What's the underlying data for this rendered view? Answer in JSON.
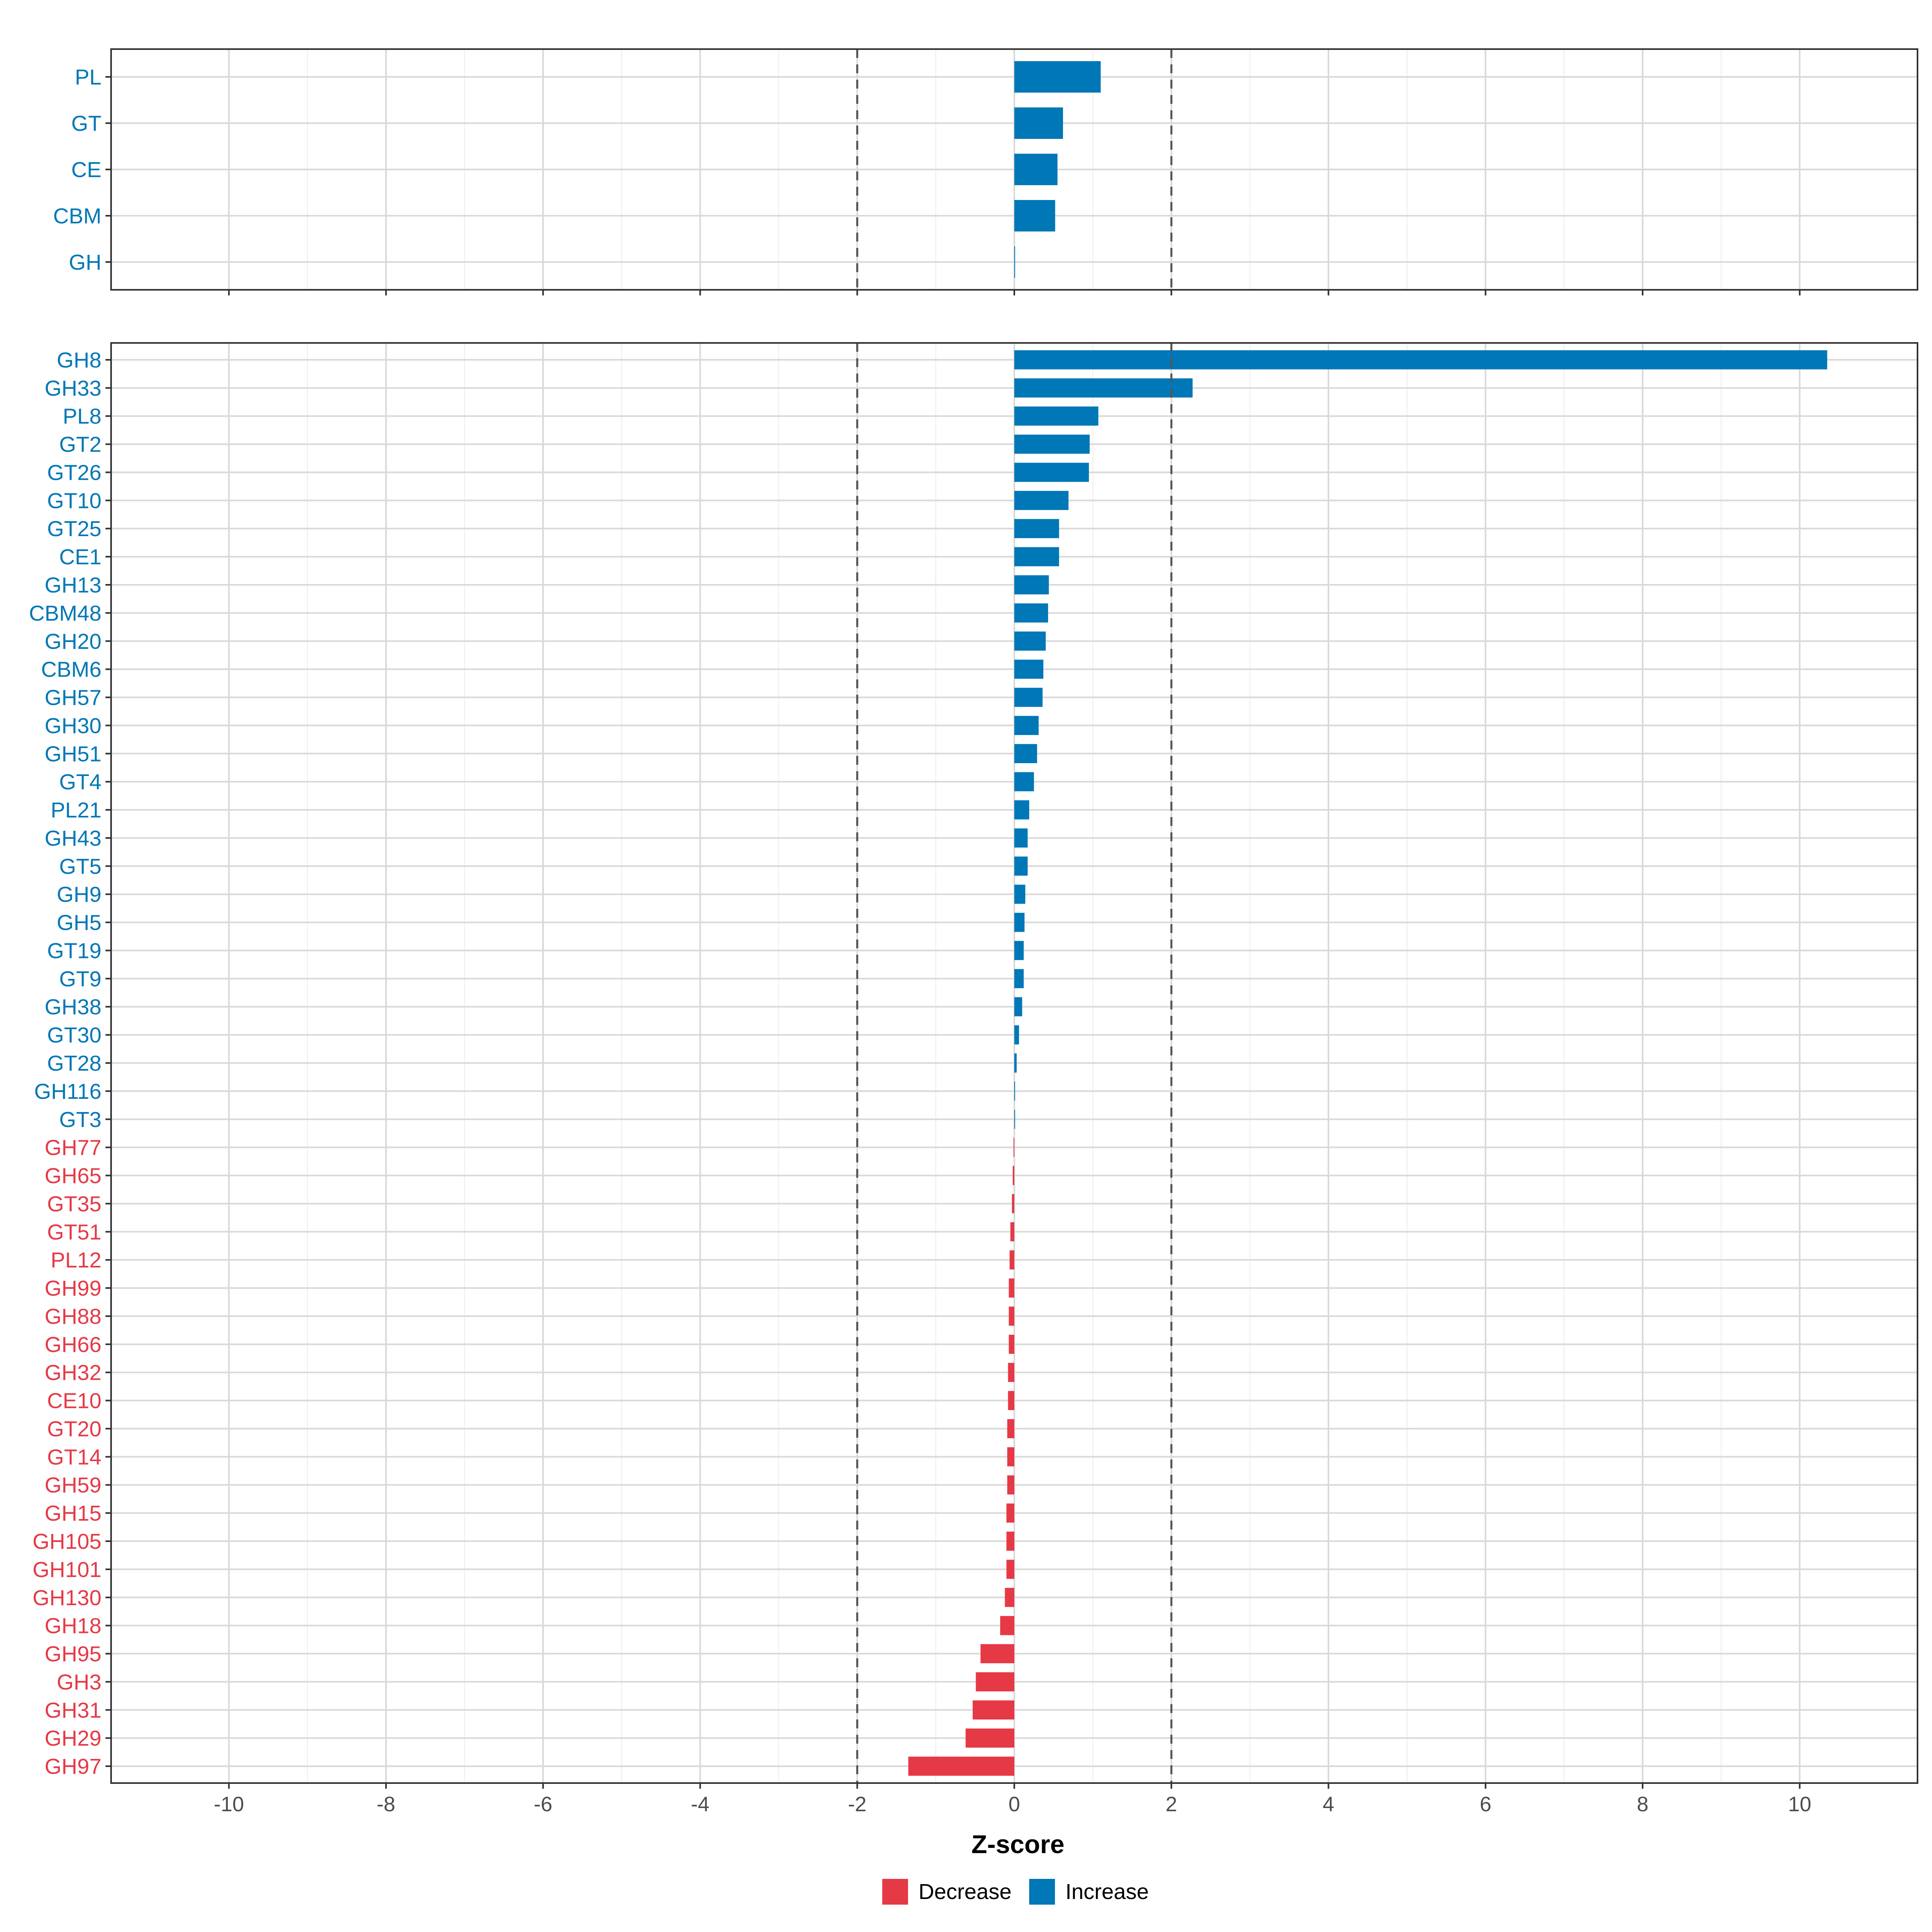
{
  "chart_data": [
    {
      "type": "bar",
      "orientation": "horizontal",
      "categories": [
        "PL",
        "GT",
        "CE",
        "CBM",
        "GH"
      ],
      "values": [
        1.1,
        0.62,
        0.55,
        0.52,
        0.01
      ],
      "direction": [
        "Increase",
        "Increase",
        "Increase",
        "Increase",
        "Increase"
      ],
      "xlim": [
        -11.5,
        11.5
      ],
      "reference_lines": [
        -2,
        2
      ],
      "grid": true
    },
    {
      "type": "bar",
      "orientation": "horizontal",
      "categories": [
        "GH8",
        "GH33",
        "PL8",
        "GT2",
        "GT26",
        "GT10",
        "GT25",
        "CE1",
        "GH13",
        "CBM48",
        "GH20",
        "CBM6",
        "GH57",
        "GH30",
        "GH51",
        "GT4",
        "PL21",
        "GH43",
        "GT5",
        "GH9",
        "GH5",
        "GT19",
        "GT9",
        "GH38",
        "GT30",
        "GT28",
        "GH116",
        "GT3",
        "GH77",
        "GH65",
        "GT35",
        "GT51",
        "PL12",
        "GH99",
        "GH88",
        "GH66",
        "GH32",
        "CE10",
        "GT20",
        "GT14",
        "GH59",
        "GH15",
        "GH105",
        "GH101",
        "GH130",
        "GH18",
        "GH95",
        "GH3",
        "GH31",
        "GH29",
        "GH97"
      ],
      "values": [
        10.35,
        2.27,
        1.07,
        0.96,
        0.95,
        0.69,
        0.57,
        0.57,
        0.44,
        0.43,
        0.4,
        0.37,
        0.36,
        0.31,
        0.29,
        0.25,
        0.19,
        0.17,
        0.17,
        0.14,
        0.13,
        0.12,
        0.12,
        0.1,
        0.06,
        0.03,
        0.01,
        0.01,
        -0.01,
        -0.02,
        -0.03,
        -0.05,
        -0.06,
        -0.07,
        -0.07,
        -0.07,
        -0.08,
        -0.08,
        -0.09,
        -0.09,
        -0.09,
        -0.1,
        -0.1,
        -0.1,
        -0.12,
        -0.18,
        -0.43,
        -0.49,
        -0.53,
        -0.62,
        -1.35
      ],
      "direction": [
        "Increase",
        "Increase",
        "Increase",
        "Increase",
        "Increase",
        "Increase",
        "Increase",
        "Increase",
        "Increase",
        "Increase",
        "Increase",
        "Increase",
        "Increase",
        "Increase",
        "Increase",
        "Increase",
        "Increase",
        "Increase",
        "Increase",
        "Increase",
        "Increase",
        "Increase",
        "Increase",
        "Increase",
        "Increase",
        "Increase",
        "Increase",
        "Increase",
        "Decrease",
        "Decrease",
        "Decrease",
        "Decrease",
        "Decrease",
        "Decrease",
        "Decrease",
        "Decrease",
        "Decrease",
        "Decrease",
        "Decrease",
        "Decrease",
        "Decrease",
        "Decrease",
        "Decrease",
        "Decrease",
        "Decrease",
        "Decrease",
        "Decrease",
        "Decrease",
        "Decrease",
        "Decrease",
        "Decrease"
      ],
      "xlim": [
        -11.5,
        11.5
      ],
      "xticks": [
        -10,
        -8,
        -6,
        -4,
        -2,
        0,
        2,
        4,
        6,
        8,
        10
      ],
      "xtick_labels": [
        "-10",
        "-8",
        "-6",
        "-4",
        "-2",
        "0",
        "2",
        "4",
        "6",
        "8",
        "10"
      ],
      "xlabel": "Z-score",
      "reference_lines": [
        -2,
        2
      ],
      "grid": true
    }
  ],
  "legend": {
    "placement": "bottom",
    "items": [
      {
        "label": "Decrease",
        "color": "#E63946"
      },
      {
        "label": "Increase",
        "color": "#0077B6"
      }
    ]
  },
  "colors": {
    "increase": "#0077B6",
    "decrease": "#E63946",
    "grid": "#d9d9d9",
    "reference_line": "#555555"
  }
}
